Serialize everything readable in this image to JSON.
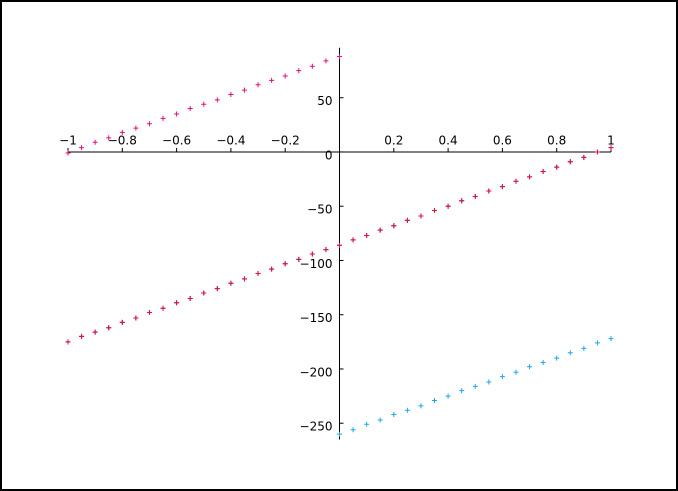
{
  "chart_data": {
    "type": "scatter",
    "xlim": [
      -1,
      1
    ],
    "ylim": [
      -265,
      96
    ],
    "xticks": [
      {
        "value": -1,
        "label": "−1"
      },
      {
        "value": -0.8,
        "label": "−0.8"
      },
      {
        "value": -0.6,
        "label": "−0.6"
      },
      {
        "value": -0.4,
        "label": "−0.4"
      },
      {
        "value": -0.2,
        "label": "−0.2"
      },
      0.2,
      0.4,
      0.6,
      0.8,
      1
    ],
    "yticks": [
      50,
      0,
      {
        "value": -50,
        "label": "−50"
      },
      {
        "value": -100,
        "label": "−100"
      },
      {
        "value": -150,
        "label": "−150"
      },
      {
        "value": -200,
        "label": "−200"
      },
      {
        "value": -250,
        "label": "−250"
      }
    ],
    "grid": false,
    "series": [
      {
        "color": "#e0107a",
        "x": [
          -1,
          -0.95,
          -0.9,
          -0.85,
          -0.8,
          -0.75,
          -0.7,
          -0.65,
          -0.6,
          -0.55,
          -0.5,
          -0.45,
          -0.4,
          -0.35,
          -0.3,
          -0.25,
          -0.2,
          -0.15,
          -0.1,
          -0.05,
          0
        ],
        "values": [
          -1,
          4,
          9,
          13,
          18,
          22,
          26,
          31,
          35,
          40,
          44,
          48,
          53,
          57,
          62,
          66,
          70,
          75,
          79,
          84,
          88
        ]
      },
      {
        "color": "#1a237e",
        "x": [
          -1,
          -0.95,
          -0.9,
          -0.85,
          -0.8,
          -0.75,
          -0.7,
          -0.65,
          -0.6,
          -0.55,
          -0.5,
          -0.45,
          -0.4,
          -0.35,
          -0.3,
          -0.25,
          -0.2,
          -0.15,
          -0.1,
          -0.05,
          0,
          0.05,
          0.1,
          0.15,
          0.2,
          0.25,
          0.3,
          0.35,
          0.4,
          0.45,
          0.5,
          0.55,
          0.6,
          0.65,
          0.7,
          0.75,
          0.8,
          0.85,
          0.9,
          0.95,
          1
        ],
        "values": [
          -175,
          -170,
          -166,
          -162,
          -157,
          -153,
          -148,
          -144,
          -139,
          -135,
          -130,
          -126,
          -121,
          -117,
          -112,
          -108,
          -103,
          -99,
          -94,
          -90,
          -86,
          -81,
          -77,
          -72,
          -68,
          -63,
          -59,
          -54,
          -50,
          -45,
          -41,
          -36,
          -32,
          -27,
          -23,
          -18,
          -14,
          -9,
          -5,
          0,
          4
        ]
      },
      {
        "color": "#e8103a",
        "x": [
          -1,
          -0.95,
          -0.9,
          -0.85,
          -0.8,
          -0.75,
          -0.7,
          -0.65,
          -0.6,
          -0.55,
          -0.5,
          -0.45,
          -0.4,
          -0.35,
          -0.3,
          -0.25,
          -0.2,
          -0.15,
          -0.1,
          -0.05,
          0,
          0.05,
          0.1,
          0.15,
          0.2,
          0.25,
          0.3,
          0.35,
          0.4,
          0.45,
          0.5,
          0.55,
          0.6,
          0.65,
          0.7,
          0.75,
          0.8,
          0.85,
          0.9,
          0.95,
          1
        ],
        "values": [
          -175,
          -170,
          -166,
          -162,
          -157,
          -153,
          -148,
          -144,
          -139,
          -135,
          -130,
          -126,
          -121,
          -117,
          -112,
          -108,
          -103,
          -99,
          -94,
          -90,
          -86,
          -81,
          -77,
          -72,
          -68,
          -63,
          -59,
          -54,
          -50,
          -45,
          -41,
          -36,
          -32,
          -27,
          -23,
          -18,
          -14,
          -9,
          -5,
          0,
          4
        ]
      },
      {
        "color": "#1ea8e8",
        "x": [
          0,
          0.05,
          0.1,
          0.15,
          0.2,
          0.25,
          0.3,
          0.35,
          0.4,
          0.45,
          0.5,
          0.55,
          0.6,
          0.65,
          0.7,
          0.75,
          0.8,
          0.85,
          0.9,
          0.95,
          1
        ],
        "values": [
          -260,
          -256,
          -251,
          -247,
          -242,
          -238,
          -234,
          -229,
          -225,
          -220,
          -216,
          -212,
          -207,
          -203,
          -198,
          -194,
          -190,
          -185,
          -181,
          -176,
          -172
        ]
      }
    ]
  }
}
